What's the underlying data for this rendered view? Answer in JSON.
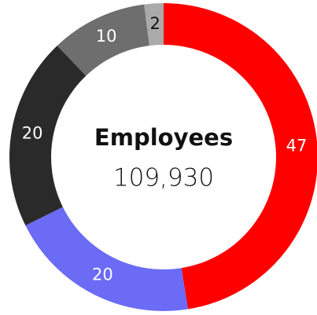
{
  "chart_data": {
    "type": "donut",
    "title": "Employees",
    "subtitle": "109,930",
    "categories": [
      null,
      null,
      null,
      null,
      null
    ],
    "values": [
      47,
      20,
      20,
      10,
      2
    ],
    "colors": [
      "#ff0000",
      "#6b6bf5",
      "#2a2a2a",
      "#6e6e6e",
      "#aaaaaa"
    ]
  }
}
